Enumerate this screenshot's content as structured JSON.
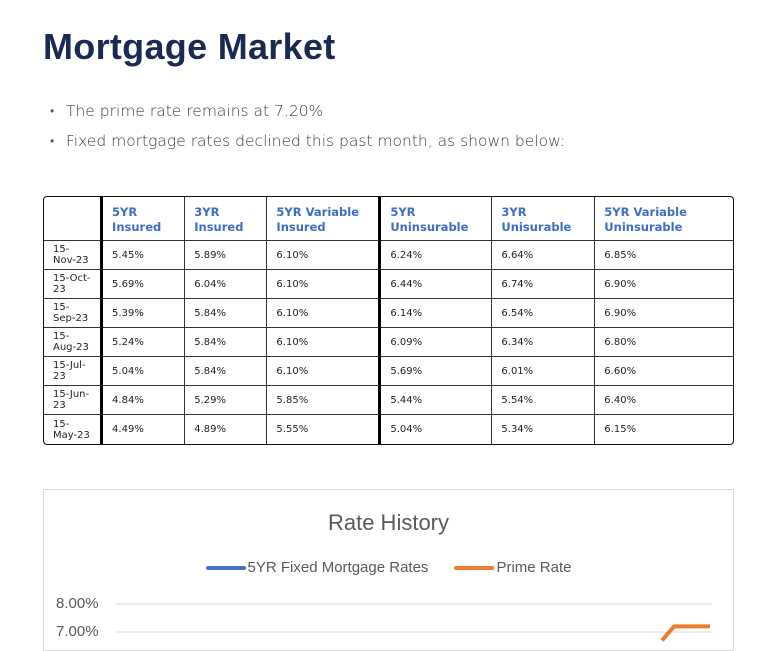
{
  "title": "Mortgage Market",
  "bullets": [
    "The prime rate remains at 7.20%",
    "Fixed mortgage rates declined this past month, as shown below:"
  ],
  "table": {
    "headers": [
      "",
      "5YR Insured",
      "3YR Insured",
      "5YR Variable Insured",
      "5YR Uninsurable",
      "3YR Unisurable",
      "5YR Variable Uninsurable"
    ],
    "rows": [
      [
        "15-Nov-23",
        "5.45%",
        "5.89%",
        "6.10%",
        "6.24%",
        "6.64%",
        "6.85%"
      ],
      [
        "15-Oct-23",
        "5.69%",
        "6.04%",
        "6.10%",
        "6.44%",
        "6.74%",
        "6.90%"
      ],
      [
        "15-Sep-23",
        "5.39%",
        "5.84%",
        "6.10%",
        "6.14%",
        "6.54%",
        "6.90%"
      ],
      [
        "15-Aug-23",
        "5.24%",
        "5.84%",
        "6.10%",
        "6.09%",
        "6.34%",
        "6.80%"
      ],
      [
        "15-Jul-23",
        "5.04%",
        "5.84%",
        "6.10%",
        "5.69%",
        "6.01%",
        "6.60%"
      ],
      [
        "15-Jun-23",
        "4.84%",
        "5.29%",
        "5.85%",
        "5.44%",
        "5.54%",
        "6.40%"
      ],
      [
        "15-May-23",
        "4.49%",
        "4.89%",
        "5.55%",
        "5.04%",
        "5.34%",
        "6.15%"
      ]
    ]
  },
  "chart_data": {
    "type": "line",
    "title": "Rate History",
    "legend_position": "top",
    "grid": true,
    "yticks": [
      "8.00%",
      "7.00%"
    ],
    "series": [
      {
        "name": "5YR Fixed Mortgage Rates",
        "color": "#4472c4"
      },
      {
        "name": "Prime Rate",
        "color": "#ed7d31",
        "values_visible": [
          6.7,
          7.2,
          7.2
        ]
      }
    ]
  },
  "colors": {
    "title": "#1b2a55",
    "header_text": "#3b6fc4"
  }
}
